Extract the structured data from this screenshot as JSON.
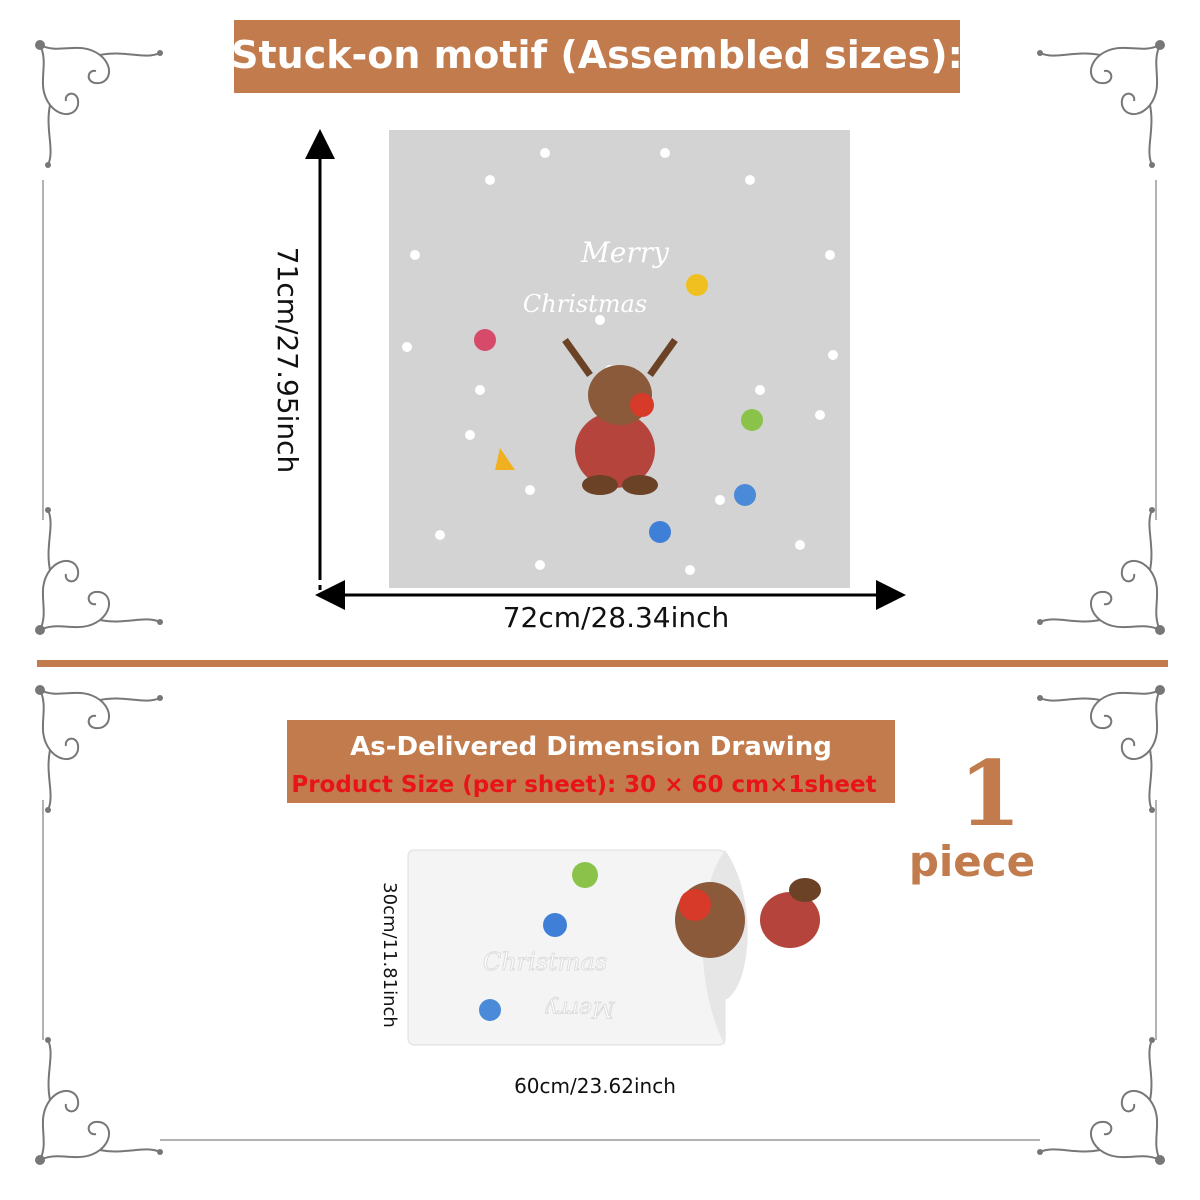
{
  "header": {
    "title": "Stuck-on motif (Assembled sizes):"
  },
  "assembled": {
    "height": "71cm/27.95inch",
    "width": "72cm/28.34inch",
    "artwork_text": [
      "Merry",
      "Christmas"
    ]
  },
  "delivered": {
    "title": "As-Delivered Dimension Drawing",
    "product_size": "Product Size (per sheet): 30 × 60 cm×1sheet",
    "height": "30cm/11.81inch",
    "width": "60cm/23.62inch",
    "artwork_text": [
      "Christmas",
      "Merry"
    ]
  },
  "quantity": {
    "number": "1",
    "unit": "piece"
  }
}
